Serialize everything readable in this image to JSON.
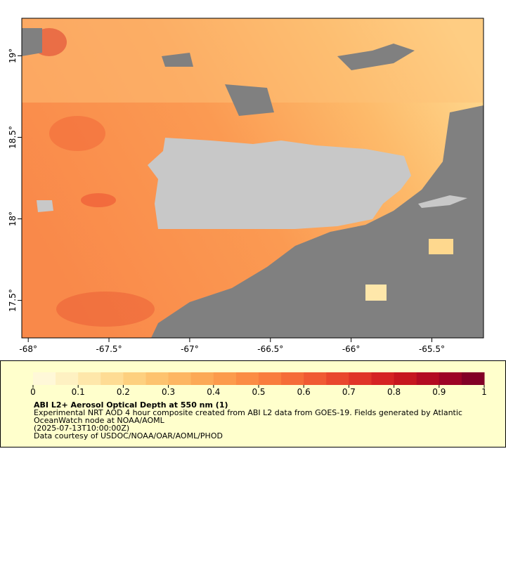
{
  "map": {
    "xlim": [
      -68.04,
      -65.18
    ],
    "ylim": [
      17.27,
      19.23
    ],
    "xticks": [
      {
        "value": -68,
        "label": "-68°"
      },
      {
        "value": -67.5,
        "label": "-67.5°"
      },
      {
        "value": -67,
        "label": "-67°"
      },
      {
        "value": -66.5,
        "label": "-66.5°"
      },
      {
        "value": -66,
        "label": "-66°"
      },
      {
        "value": -65.5,
        "label": "-65.5°"
      }
    ],
    "yticks": [
      {
        "value": 17.5,
        "label": "17.5°"
      },
      {
        "value": 18,
        "label": "18°"
      },
      {
        "value": 18.5,
        "label": "18.5°"
      },
      {
        "value": 19,
        "label": "19°"
      }
    ]
  },
  "colorbar": {
    "lim": [
      0,
      1
    ],
    "ticks": [
      0,
      0.1,
      0.2,
      0.3,
      0.4,
      0.5,
      0.6,
      0.7,
      0.8,
      0.9,
      1
    ],
    "colors": [
      "#fff8d8",
      "#fef1c2",
      "#fee7aa",
      "#fedc94",
      "#fdd07f",
      "#fdc36f",
      "#fdb662",
      "#fca956",
      "#fc9b4c",
      "#fb8c44",
      "#f97d3e",
      "#f56c38",
      "#f05a33",
      "#e9472d",
      "#e03428",
      "#d52323",
      "#c6161f",
      "#b30b22",
      "#9d0325",
      "#820026"
    ]
  },
  "caption": {
    "title": "ABI L2+ Aerosol Optical Depth at 550 nm (1)",
    "description": "Experimental NRT AOD 4 hour composite created from ABI L2 data from GOES-19. Fields generated by Atlantic OceanWatch node at NOAA/AOML",
    "time": "(2025-07-13T10:00:00Z)",
    "credit": "Data courtesy of USDOC/NOAA/OAR/AOML/PHOD"
  }
}
